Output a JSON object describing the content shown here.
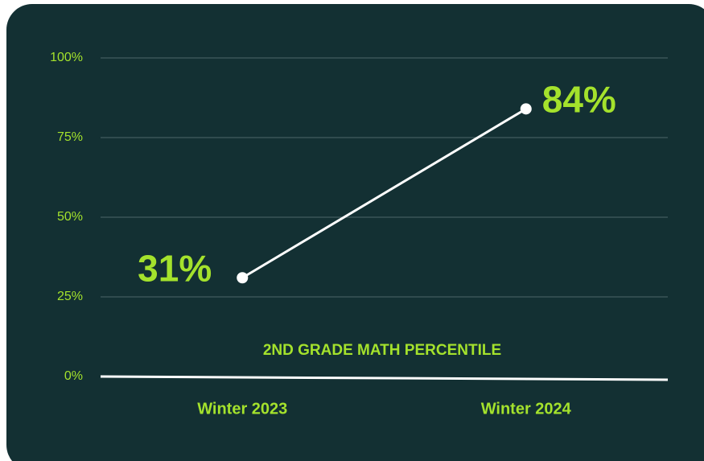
{
  "chart_data": {
    "type": "line",
    "title": "2ND GRADE MATH PERCENTILE",
    "categories": [
      "Winter 2023",
      "Winter 2024"
    ],
    "series": [
      {
        "color": "#ffffff",
        "values": [
          31,
          84
        ],
        "value_labels": [
          "31%",
          "84%"
        ]
      }
    ],
    "value_label_color": "#a4e22c",
    "ylim": [
      0,
      100
    ],
    "yticks": [
      {
        "value": 0,
        "label": "0%"
      },
      {
        "value": 25,
        "label": "25%"
      },
      {
        "value": 50,
        "label": "50%"
      },
      {
        "value": 75,
        "label": "75%"
      },
      {
        "value": 100,
        "label": "100%"
      }
    ],
    "grid": true
  }
}
